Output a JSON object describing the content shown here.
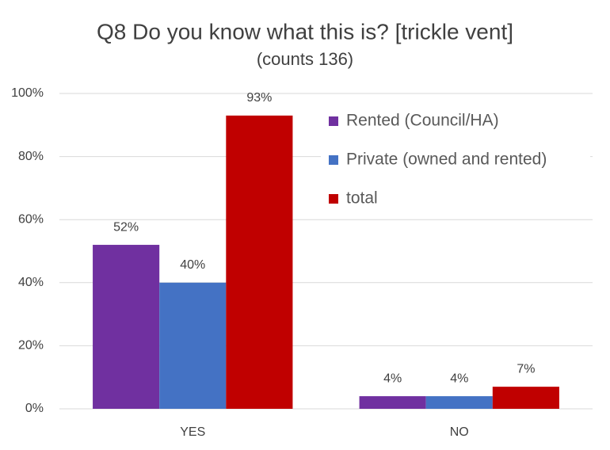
{
  "chart_data": {
    "type": "bar",
    "title": "Q8 Do you know what this is? [trickle vent]",
    "subtitle": "(counts 136)",
    "categories": [
      "YES",
      "NO"
    ],
    "series": [
      {
        "name": "Rented (Council/HA)",
        "color": "#7030a0",
        "values": [
          52,
          4
        ],
        "value_labels": [
          "52%",
          "4%"
        ]
      },
      {
        "name": "Private (owned and rented)",
        "color": "#4472c4",
        "values": [
          40,
          4
        ],
        "value_labels": [
          "40%",
          "4%"
        ]
      },
      {
        "name": "total",
        "color": "#c00000",
        "values": [
          93,
          7
        ],
        "value_labels": [
          "93%",
          "7%"
        ]
      }
    ],
    "ylim": [
      0,
      100
    ],
    "yticks": [
      {
        "value": 0,
        "label": "0%"
      },
      {
        "value": 20,
        "label": "20%"
      },
      {
        "value": 40,
        "label": "40%"
      },
      {
        "value": 60,
        "label": "60%"
      },
      {
        "value": 80,
        "label": "80%"
      },
      {
        "value": 100,
        "label": "100%"
      }
    ],
    "grid": true,
    "legend": "upper right"
  }
}
